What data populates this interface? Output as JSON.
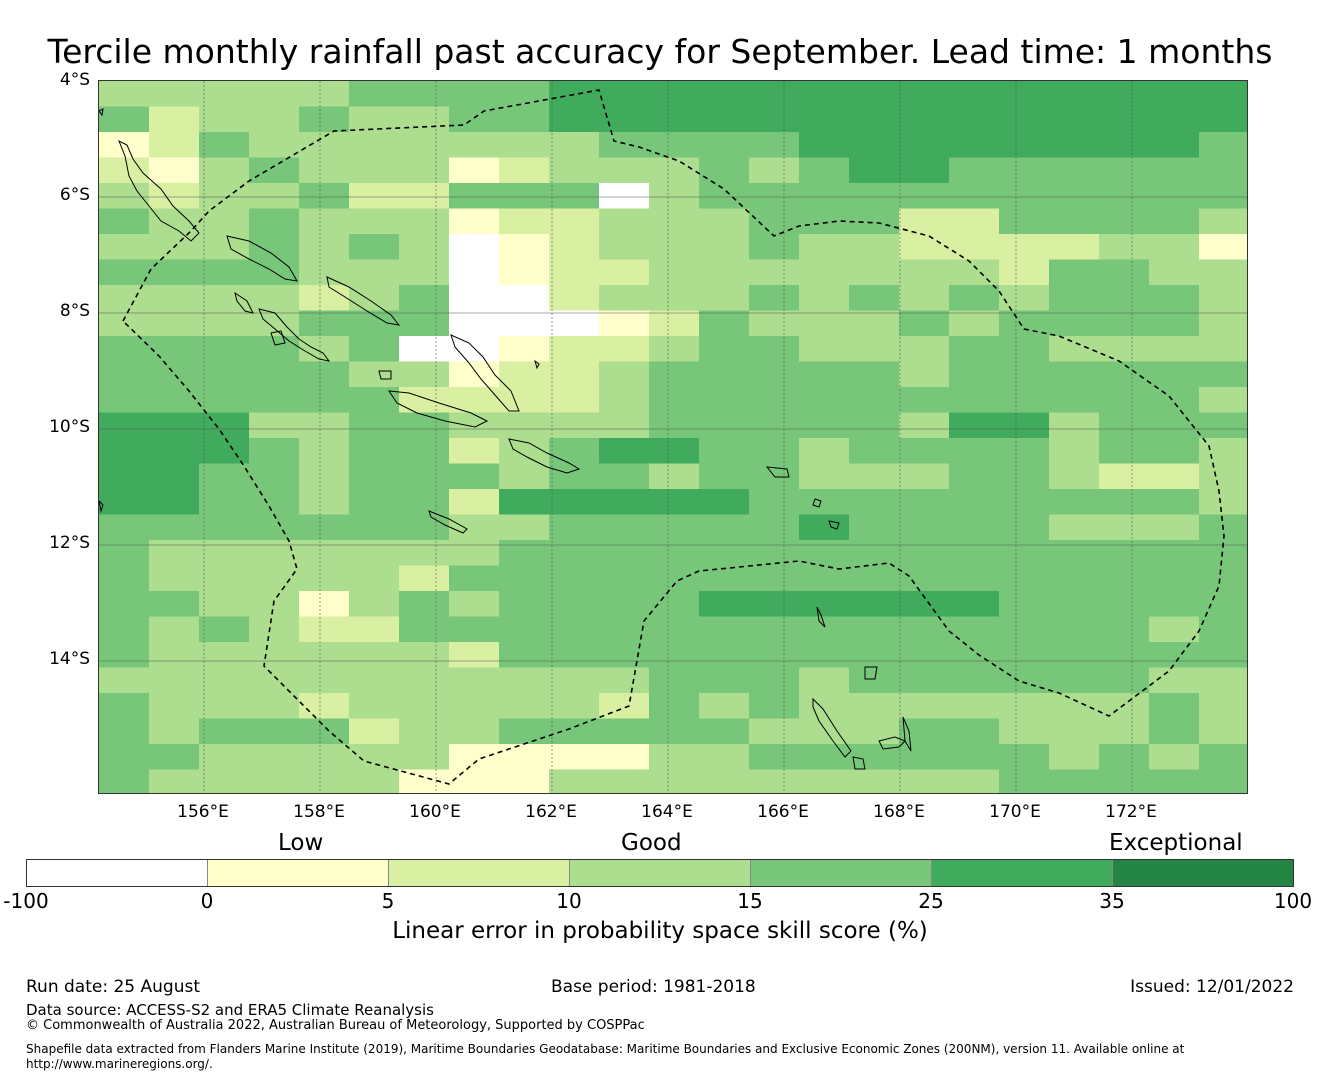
{
  "title": "Tercile monthly rainfall past accuracy for September. Lead time: 1 months",
  "map": {
    "lat_labels": [
      "4°S",
      "6°S",
      "8°S",
      "10°S",
      "12°S",
      "14°S"
    ],
    "lon_labels": [
      "156°E",
      "158°E",
      "160°E",
      "162°E",
      "164°E",
      "166°E",
      "168°E",
      "170°E",
      "172°E"
    ],
    "lon_range": [
      154.2,
      174.0
    ],
    "lat_range": [
      -4.0,
      -16.3
    ]
  },
  "legend": {
    "categories": [
      "Low",
      "Good",
      "Exceptional"
    ],
    "ticks": [
      "-100",
      "0",
      "5",
      "10",
      "15",
      "25",
      "35",
      "100"
    ],
    "colors": [
      "#ffffff",
      "#ffffcc",
      "#d9f0a3",
      "#addd8e",
      "#78c679",
      "#41ab5d",
      "#238443"
    ],
    "title": "Linear error in probability space skill score (%)"
  },
  "footer": {
    "run_date": "Run date: 25 August",
    "base_period": "Base period: 1981-2018",
    "issued": "Issued: 12/01/2022",
    "data_source": "Data source: ACCESS-S2 and ERA5 Climate Reanalysis",
    "copyright": "© Commonwealth of Australia 2022, Australian Bureau of Meteorology, Supported by COSPPac",
    "shapefile_line1": "Shapefile data extracted from Flanders Marine Institute (2019), Maritime Boundaries Geodatabase: Maritime Boundaries and Exclusive Economic Zones (200NM), version 11. Available online at",
    "shapefile_line2": "http://www.marineregions.org/."
  },
  "chart_data": {
    "type": "heatmap",
    "title": "Tercile monthly rainfall past accuracy for September. Lead time: 1 months",
    "colorbar_label": "Linear error in probability space skill score (%)",
    "class_bounds": [
      -100,
      0,
      5,
      10,
      15,
      25,
      35,
      100
    ],
    "grid_rows": [
      "33333444455555555555555",
      "42334334455555555555555",
      "12433333334444555555554",
      "21343331233343455444444",
      "32334224440344444444444",
      "43343331223334442244443",
      "33343430123334332222331",
      "44443330122333333324433",
      "33332343023334343434443",
      "33334443001243334344443",
      "44443400122344333443333",
      "44444331223444443444444",
      "44444422223444444444443",
      "55533443333444443553444",
      "55543442345544344443443",
      "55443444344344333443223",
      "55443442555554444444443",
      "44444443344444544443334",
      "43333333444444444444444",
      "43333324444444444444444",
      "44331343444455555544444",
      "43432244444444444444434",
      "43333332444444444444444",
      "33333333333444344444433",
      "43332333332434333333343",
      "43444233444443334433343",
      "44333331111334444443434",
      "43333311133333333344444"
    ],
    "masked_cells": [
      [
        8,
        7
      ],
      [
        9,
        7
      ],
      [
        10,
        7
      ]
    ]
  }
}
